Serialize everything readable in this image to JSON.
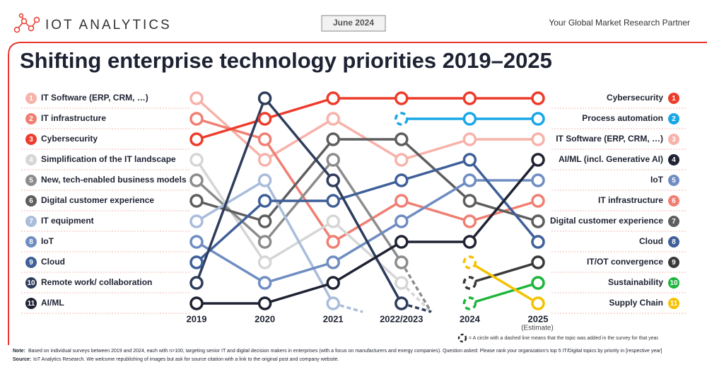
{
  "brand": "IOT ANALYTICS",
  "date": "June 2024",
  "tagline": "Your Global Market Research Partner",
  "chart_data": {
    "type": "bump",
    "title": "Shifting enterprise technology priorities 2019–2025",
    "categories": [
      "2019",
      "2020",
      "2021",
      "2022/2023",
      "2024",
      "2025"
    ],
    "x_note": "(Estimate)",
    "ranks": [
      1,
      2,
      3,
      4,
      5,
      6,
      7,
      8,
      9,
      10,
      11
    ],
    "ylim": [
      1,
      11
    ],
    "left_labels": [
      "IT Software (ERP, CRM, …)",
      "IT infrastructure",
      "Cybersecurity",
      "Simplification of the IT landscape",
      "New, tech-enabled business models",
      "Digital customer experience",
      "IT equipment",
      "IoT",
      "Cloud",
      "Remote work/ collaboration",
      "AI/ML"
    ],
    "right_labels": [
      "Cybersecurity",
      "Process automation",
      "IT Software (ERP, CRM, …)",
      "AI/ML (incl. Generative AI)",
      "IoT",
      "IT infrastructure",
      "Digital customer experience",
      "Cloud",
      "IT/OT convergence",
      "Sustainability",
      "Supply Chain"
    ],
    "series": [
      {
        "color": "#f7b2a9",
        "values": [
          1,
          4,
          2,
          4,
          3,
          3
        ]
      },
      {
        "color": "#f07f72",
        "values": [
          2,
          3,
          8,
          6,
          7,
          6
        ]
      },
      {
        "color": "#ee3b2b",
        "values": [
          3,
          2,
          1,
          1,
          1,
          1
        ]
      },
      {
        "color": "#d6d6d6",
        "values": [
          4,
          9,
          7,
          10,
          null,
          null
        ]
      },
      {
        "color": "#8c8c8c",
        "values": [
          5,
          8,
          4,
          9,
          null,
          null
        ]
      },
      {
        "color": "#5e5e5e",
        "values": [
          6,
          7,
          3,
          3,
          6,
          7
        ]
      },
      {
        "color": "#a9bddb",
        "values": [
          7,
          5,
          11,
          null,
          null,
          null
        ]
      },
      {
        "color": "#6f8dc2",
        "values": [
          8,
          10,
          9,
          7,
          5,
          5
        ]
      },
      {
        "color": "#3f5f99",
        "values": [
          9,
          6,
          6,
          5,
          4,
          8
        ]
      },
      {
        "color": "#2e3d5c",
        "values": [
          10,
          1,
          5,
          11,
          null,
          null
        ]
      },
      {
        "color": "#1e2232",
        "values": [
          11,
          11,
          10,
          8,
          8,
          4
        ]
      },
      {
        "color": "#1aa7e6",
        "values": [
          null,
          null,
          null,
          2,
          2,
          2
        ]
      },
      {
        "color": "#3a3a3a",
        "values": [
          null,
          null,
          null,
          null,
          10,
          9
        ]
      },
      {
        "color": "#1db53c",
        "values": [
          null,
          null,
          null,
          null,
          11,
          10
        ]
      },
      {
        "color": "#f5c200",
        "values": [
          null,
          null,
          null,
          null,
          9,
          11
        ]
      }
    ],
    "legend_text": "= A circle with a dashed line means that the topic was added in the survey for that year."
  },
  "note_label": "Note:",
  "note": "Based on individual surveys between 2019 and 2024, each with n>100, targeting senior IT and digital decision makers in enterprises (with a focus on manufacturers and energy companies). Question asked: Please rank your organization’s top 5 IT/Digital topics by priority in [respective year]",
  "source_label": "Source:",
  "source": "IoT Analytics Research. We welcome republishing of images but ask for source citation with a link to the original post and company website."
}
